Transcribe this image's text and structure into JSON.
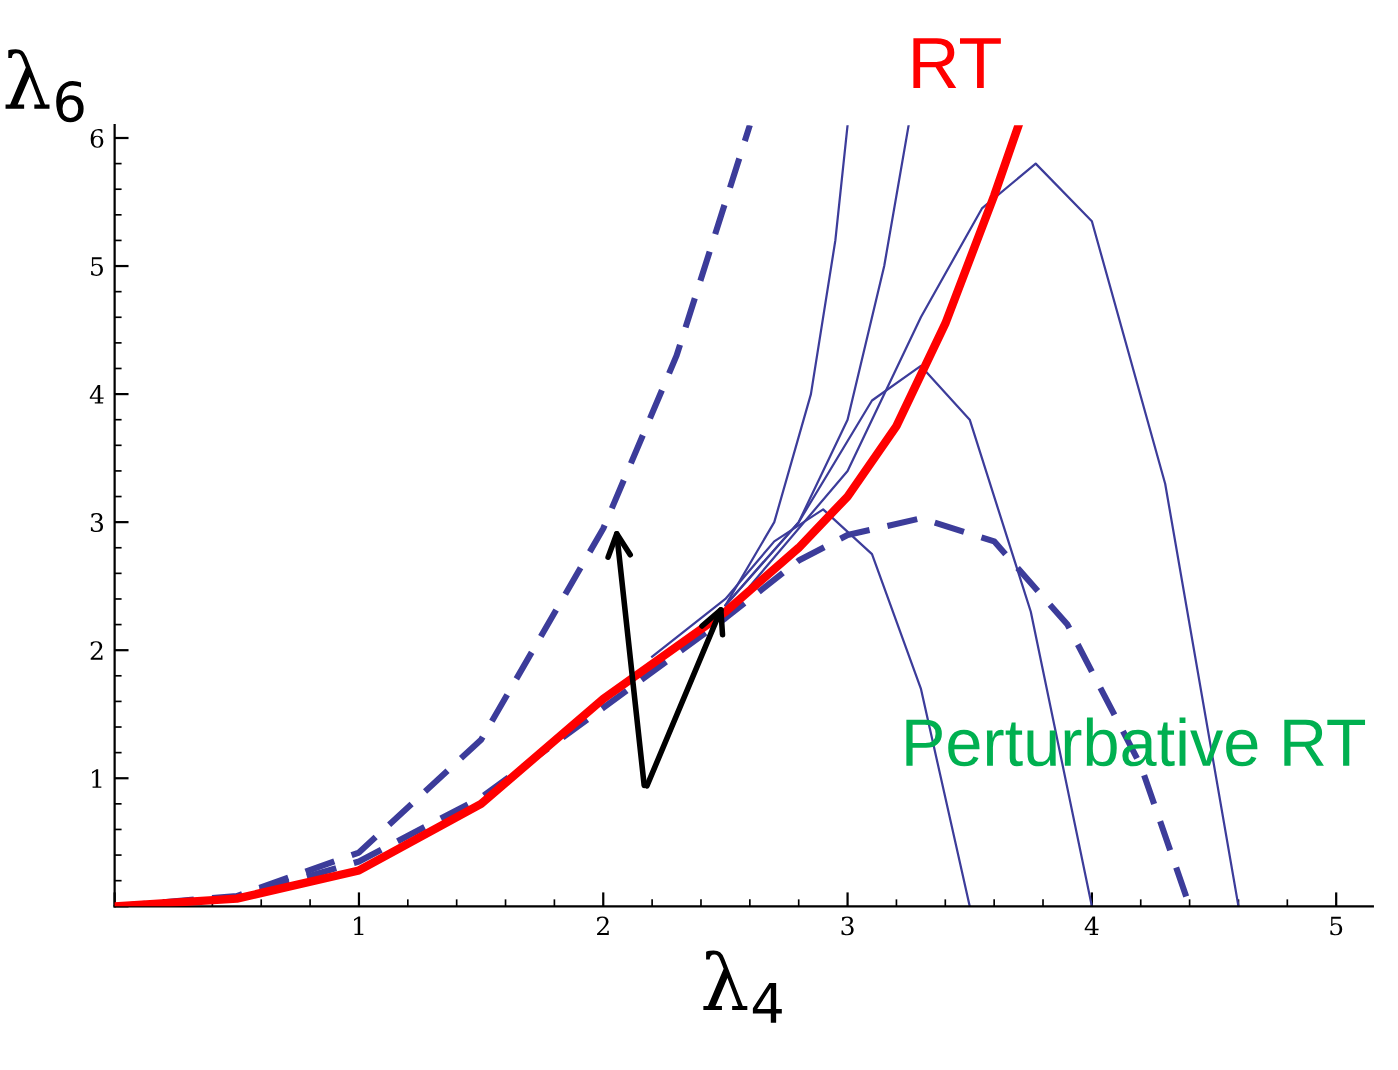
{
  "chart_data": {
    "type": "line",
    "xlabel": "λ$_{4}$",
    "ylabel": "λ$_{6}$",
    "xlim": [
      0,
      5.15
    ],
    "ylim": [
      0,
      6.1
    ],
    "xticks": [
      {
        "value": 0,
        "label": null
      },
      1,
      2,
      3,
      4,
      5
    ],
    "yticks": [
      {
        "value": 0,
        "label": null
      },
      1,
      2,
      3,
      4,
      5,
      6
    ],
    "grid": false,
    "legend": false,
    "marker": "none",
    "annotations": [
      "Perturbative RT"
    ],
    "series": [
      {
        "color": "#3c3c9a",
        "line_style": "dashed",
        "x": [
          0,
          0.5,
          1,
          1.5,
          2,
          2.3,
          2.6
        ],
        "values": [
          0,
          0.08,
          0.42,
          1.3,
          2.95,
          4.3,
          6.1
        ]
      },
      {
        "color": "#3c3c9a",
        "line_style": "dashed",
        "x": [
          0,
          0.5,
          1,
          1.5,
          2,
          2.5,
          2.8,
          3,
          3.3,
          3.6,
          3.9,
          4.2,
          4.4
        ],
        "values": [
          0,
          0.07,
          0.35,
          0.85,
          1.55,
          2.25,
          2.7,
          2.9,
          3.03,
          2.85,
          2.2,
          1.1,
          0
        ]
      },
      {
        "color": "#3c3c9a",
        "line_style": "solid",
        "x": [
          2.2,
          2.5,
          2.7,
          2.9,
          3.1,
          3.3,
          3.5
        ],
        "values": [
          1.95,
          2.4,
          2.85,
          3.1,
          2.75,
          1.7,
          0
        ]
      },
      {
        "color": "#3c3c9a",
        "line_style": "solid",
        "x": [
          2.5,
          2.8,
          3.1,
          3.3,
          3.5,
          3.75,
          4.0
        ],
        "values": [
          2.35,
          3.0,
          3.95,
          4.22,
          3.8,
          2.3,
          0
        ]
      },
      {
        "color": "#3c3c9a",
        "line_style": "solid",
        "x": [
          2.6,
          3.0,
          3.3,
          3.55,
          3.77,
          4.0,
          4.3,
          4.6
        ],
        "values": [
          2.5,
          3.4,
          4.6,
          5.45,
          5.8,
          5.35,
          3.3,
          0
        ]
      },
      {
        "color": "#3c3c9a",
        "line_style": "solid",
        "x": [
          2.5,
          2.7,
          2.85,
          2.95,
          3.0
        ],
        "values": [
          2.35,
          3.0,
          4.0,
          5.2,
          6.1
        ]
      },
      {
        "color": "#3c3c9a",
        "line_style": "solid",
        "x": [
          2.5,
          2.8,
          3.0,
          3.15,
          3.25
        ],
        "values": [
          2.35,
          3.0,
          3.8,
          5.0,
          6.1
        ]
      },
      {
        "name": "RT",
        "color": "#ff0000",
        "line_style": "solid",
        "x": [
          0,
          0.5,
          1,
          1.5,
          2,
          2.5,
          2.8,
          3,
          3.2,
          3.4,
          3.6,
          3.7
        ],
        "values": [
          0,
          0.06,
          0.28,
          0.8,
          1.62,
          2.3,
          2.8,
          3.2,
          3.75,
          4.55,
          5.55,
          6.1
        ]
      }
    ]
  }
}
